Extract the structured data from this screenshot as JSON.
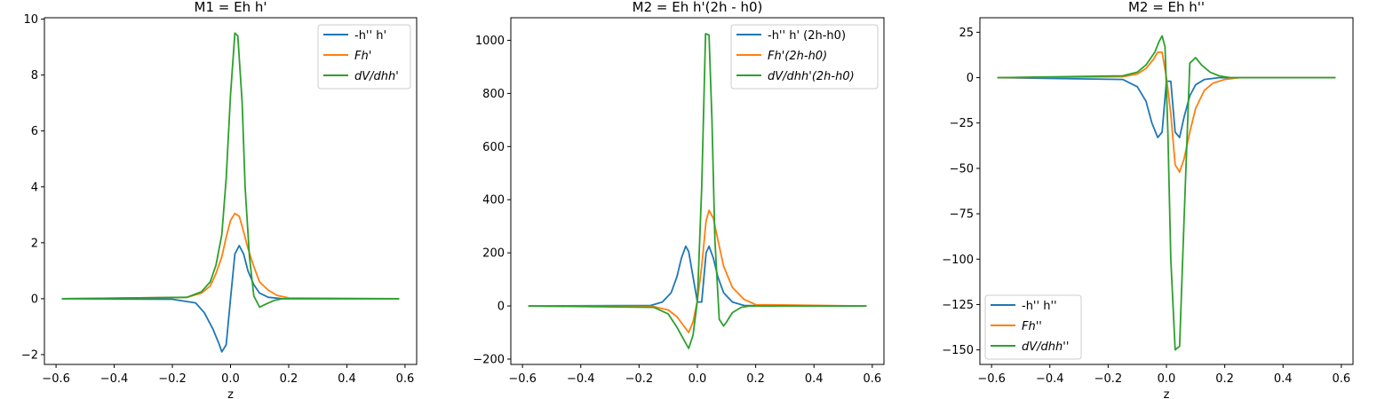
{
  "chart_data": [
    {
      "type": "line",
      "title": "M1 = Eh h'",
      "xlabel": "z",
      "ylabel": "",
      "xlim": [
        -0.64,
        0.64
      ],
      "ylim": [
        -2.35,
        10.05
      ],
      "xticks": [
        -0.6,
        -0.4,
        -0.2,
        0.0,
        0.2,
        0.4,
        0.6
      ],
      "yticks": [
        -2,
        0,
        2,
        4,
        6,
        8,
        10
      ],
      "legend_location": "upper right",
      "series": [
        {
          "name": "-h'' h'",
          "color": "#1f77b4",
          "x": [
            -0.58,
            -0.2,
            -0.12,
            -0.09,
            -0.06,
            -0.04,
            -0.03,
            -0.015,
            0,
            0.015,
            0.03,
            0.045,
            0.06,
            0.08,
            0.1,
            0.13,
            0.18,
            0.58
          ],
          "y": [
            0,
            -0.02,
            -0.15,
            -0.5,
            -1.1,
            -1.6,
            -1.9,
            -1.65,
            0,
            1.6,
            1.9,
            1.6,
            1.0,
            0.5,
            0.2,
            0.05,
            0,
            0
          ]
        },
        {
          "name": "Fh'",
          "color": "#ff7f0e",
          "x": [
            -0.58,
            -0.15,
            -0.1,
            -0.07,
            -0.05,
            -0.03,
            -0.015,
            0,
            0.015,
            0.03,
            0.045,
            0.06,
            0.08,
            0.1,
            0.13,
            0.16,
            0.2,
            0.58
          ],
          "y": [
            0,
            0.05,
            0.2,
            0.45,
            0.9,
            1.5,
            2.2,
            2.8,
            3.05,
            2.95,
            2.4,
            1.8,
            1.15,
            0.6,
            0.3,
            0.12,
            0.03,
            0
          ]
        },
        {
          "name": "dV/dhh'",
          "color": "#2ca02c",
          "x": [
            -0.58,
            -0.15,
            -0.1,
            -0.07,
            -0.05,
            -0.03,
            -0.015,
            0,
            0.015,
            0.025,
            0.04,
            0.05,
            0.065,
            0.08,
            0.1,
            0.12,
            0.15,
            0.18,
            0.58
          ],
          "y": [
            0,
            0.05,
            0.25,
            0.6,
            1.2,
            2.3,
            4.3,
            7.3,
            9.5,
            9.4,
            7.0,
            4.0,
            1.5,
            0.1,
            -0.3,
            -0.2,
            -0.06,
            0,
            0
          ]
        }
      ]
    },
    {
      "type": "line",
      "title": "M2 = Eh h'(2h - h0)",
      "xlabel": "",
      "ylabel": "",
      "xlim": [
        -0.64,
        0.64
      ],
      "ylim": [
        -220,
        1085
      ],
      "xticks": [
        -0.6,
        -0.4,
        -0.2,
        0.0,
        0.2,
        0.4,
        0.6
      ],
      "yticks": [
        -200,
        0,
        200,
        400,
        600,
        800,
        1000
      ],
      "legend_location": "upper right",
      "series": [
        {
          "name": "-h'' h' (2h-h0)",
          "color": "#1f77b4",
          "x": [
            -0.58,
            -0.16,
            -0.12,
            -0.09,
            -0.07,
            -0.055,
            -0.04,
            -0.03,
            -0.015,
            0,
            0.015,
            0.03,
            0.04,
            0.055,
            0.07,
            0.09,
            0.12,
            0.16,
            0.58
          ],
          "y": [
            0,
            2,
            15,
            50,
            110,
            180,
            225,
            205,
            110,
            15,
            15,
            200,
            225,
            180,
            110,
            50,
            15,
            2,
            0
          ]
        },
        {
          "name": "Fh'(2h-h0)",
          "color": "#ff7f0e",
          "x": [
            -0.58,
            -0.15,
            -0.1,
            -0.07,
            -0.05,
            -0.03,
            -0.015,
            0,
            0.015,
            0.03,
            0.04,
            0.055,
            0.07,
            0.09,
            0.12,
            0.16,
            0.2,
            0.58
          ],
          "y": [
            0,
            -2,
            -15,
            -40,
            -70,
            -100,
            -60,
            20,
            150,
            320,
            360,
            330,
            250,
            150,
            70,
            25,
            5,
            0
          ]
        },
        {
          "name": "dV/dhh'(2h-h0)",
          "color": "#2ca02c",
          "x": [
            -0.58,
            -0.15,
            -0.1,
            -0.07,
            -0.045,
            -0.03,
            -0.015,
            0,
            0.015,
            0.028,
            0.04,
            0.05,
            0.06,
            0.075,
            0.09,
            0.1,
            0.12,
            0.15,
            0.18,
            0.58
          ],
          "y": [
            0,
            -5,
            -30,
            -80,
            -130,
            -160,
            -110,
            20,
            450,
            1025,
            1020,
            700,
            250,
            -50,
            -75,
            -60,
            -25,
            -5,
            0,
            0
          ]
        }
      ]
    },
    {
      "type": "line",
      "title": "M2 = Eh h''",
      "xlabel": "z",
      "ylabel": "",
      "xlim": [
        -0.64,
        0.64
      ],
      "ylim": [
        -158,
        33
      ],
      "xticks": [
        -0.6,
        -0.4,
        -0.2,
        0.0,
        0.2,
        0.4,
        0.6
      ],
      "yticks": [
        -150,
        -125,
        -100,
        -75,
        -50,
        -25,
        0,
        25
      ],
      "legend_location": "lower left",
      "series": [
        {
          "name": "-h'' h''",
          "color": "#1f77b4",
          "x": [
            -0.58,
            -0.15,
            -0.1,
            -0.07,
            -0.05,
            -0.03,
            -0.015,
            0,
            0.015,
            0.03,
            0.045,
            0.06,
            0.08,
            0.1,
            0.13,
            0.18,
            0.58
          ],
          "y": [
            0,
            -1,
            -5,
            -13,
            -25,
            -33,
            -30,
            -2,
            -2,
            -30,
            -33,
            -22,
            -10,
            -4,
            -1,
            0,
            0
          ]
        },
        {
          "name": "Fh''",
          "color": "#ff7f0e",
          "x": [
            -0.58,
            -0.15,
            -0.1,
            -0.07,
            -0.045,
            -0.03,
            -0.015,
            0,
            0.015,
            0.03,
            0.045,
            0.06,
            0.08,
            0.1,
            0.13,
            0.16,
            0.2,
            0.25,
            0.58
          ],
          "y": [
            0,
            0.5,
            2,
            5,
            10,
            14,
            14,
            0,
            -20,
            -48,
            -52,
            -45,
            -30,
            -17,
            -7,
            -3,
            -1,
            0,
            0
          ]
        },
        {
          "name": "dV/dhh''",
          "color": "#2ca02c",
          "x": [
            -0.58,
            -0.15,
            -0.1,
            -0.07,
            -0.04,
            -0.025,
            -0.015,
            -0.005,
            0.005,
            0.015,
            0.03,
            0.045,
            0.06,
            0.08,
            0.1,
            0.12,
            0.15,
            0.18,
            0.22,
            0.58
          ],
          "y": [
            0,
            1,
            3,
            7,
            14,
            20,
            23,
            17,
            -30,
            -100,
            -150,
            -148,
            -80,
            8,
            11,
            7,
            3,
            1,
            0,
            0
          ]
        }
      ]
    }
  ]
}
